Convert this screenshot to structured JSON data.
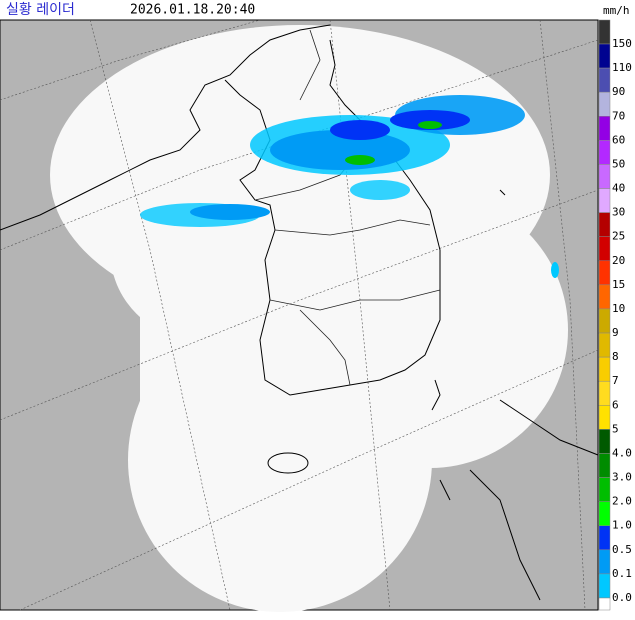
{
  "header": {
    "title": "실황 레이더",
    "timestamp": "2026.01.18.20:40",
    "unit": "mm/h"
  },
  "legend": {
    "labels": [
      "150",
      "110",
      "90",
      "70",
      "60",
      "50",
      "40",
      "30",
      "25",
      "20",
      "15",
      "10",
      "9",
      "8",
      "7",
      "6",
      "5",
      "4.0",
      "3.0",
      "2.0",
      "1.0",
      "0.5",
      "0.1",
      "0.0"
    ],
    "colors": [
      "#333333",
      "#000390",
      "#4c4eb1",
      "#b3b4de",
      "#9300e4",
      "#b329ff",
      "#c969ff",
      "#e0a9ff",
      "#b40000",
      "#d20000",
      "#ff3200",
      "#ff6600",
      "#ccaa00",
      "#e0b900",
      "#f9cd00",
      "#ffdc1f",
      "#ffe100",
      "#005a00",
      "#008c00",
      "#00be00",
      "#00ff00",
      "#0033f5",
      "#009bf5",
      "#00c8ff",
      "#ffffff"
    ]
  }
}
